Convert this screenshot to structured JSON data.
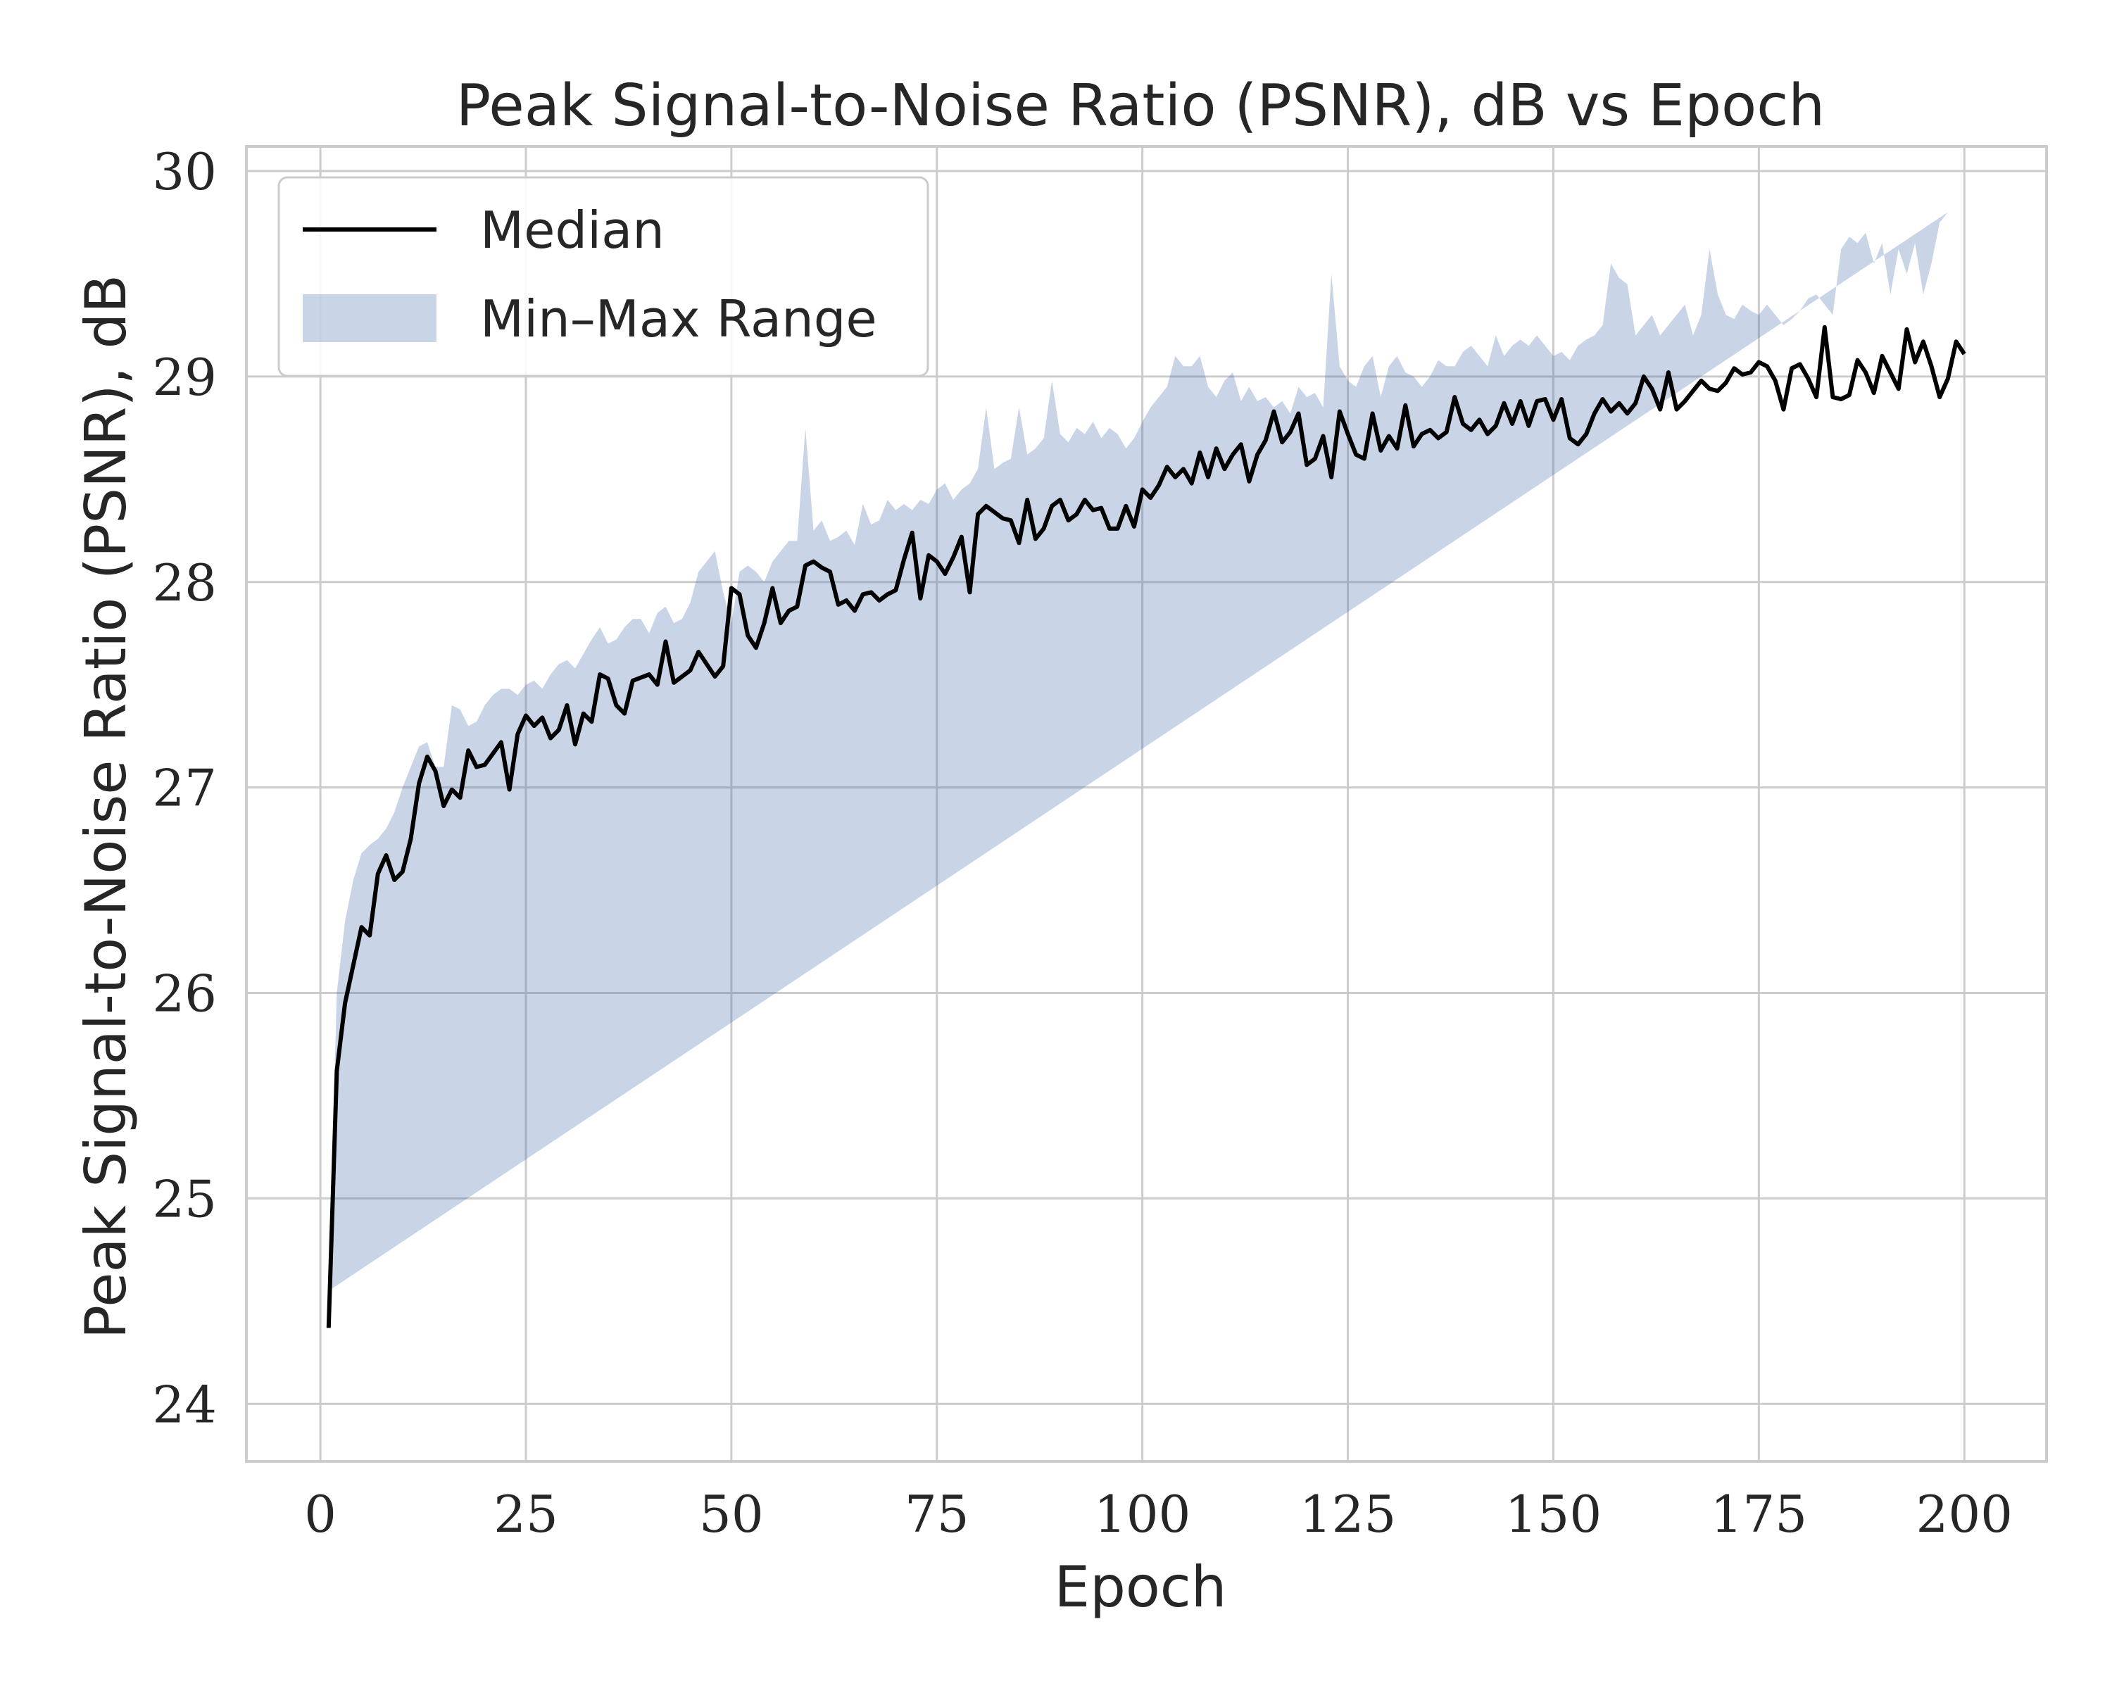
{
  "chart_data": {
    "type": "line",
    "title": "Peak Signal-to-Noise Ratio (PSNR), dB vs Epoch",
    "xlabel": "Epoch",
    "ylabel": "Peak Signal-to-Noise Ratio (PSNR), dB",
    "xlim": [
      -9,
      210
    ],
    "ylim": [
      23.72,
      30.12
    ],
    "xticks": [
      0,
      25,
      50,
      75,
      100,
      125,
      150,
      175,
      200
    ],
    "xtick_labels": [
      "0",
      "25",
      "50",
      "75",
      "100",
      "125",
      "150",
      "175",
      "200"
    ],
    "yticks": [
      24,
      25,
      26,
      27,
      28,
      29,
      30
    ],
    "ytick_labels": [
      "24",
      "25",
      "26",
      "27",
      "28",
      "29",
      "30"
    ],
    "grid": true,
    "legend": {
      "position": "top-left",
      "entries": [
        "Median",
        "Min–Max Range"
      ]
    },
    "colors": {
      "median": "#000000",
      "range_fill": "#4c72b0",
      "grid": "#cccccc",
      "spine": "#cccccc"
    },
    "series": [
      {
        "name": "Median",
        "kind": "line",
        "x": [
          1,
          2,
          3,
          5,
          6,
          7,
          8,
          9,
          10,
          11,
          12,
          13,
          14,
          15,
          16,
          17,
          18,
          19,
          20,
          22,
          23,
          24,
          25,
          26,
          27,
          28,
          29,
          30,
          31,
          32,
          33,
          34,
          35,
          36,
          37,
          38,
          40,
          41,
          42,
          43,
          45,
          46,
          48,
          49,
          50,
          51,
          52,
          53,
          54,
          55,
          56,
          57,
          58,
          59,
          60,
          61,
          62,
          63,
          64,
          65,
          66,
          67,
          68,
          69,
          70,
          71,
          72,
          73,
          74,
          75,
          76,
          77,
          78,
          79,
          80,
          81,
          82,
          83,
          84,
          85,
          86,
          87,
          88,
          89,
          90,
          91,
          92,
          93,
          94,
          95,
          96,
          97,
          98,
          99,
          100,
          101,
          102,
          103,
          104,
          105,
          106,
          107,
          108,
          109,
          110,
          111,
          112,
          113,
          114,
          115,
          116,
          117,
          118,
          119,
          120,
          121,
          122,
          123,
          124,
          125,
          126,
          127,
          128,
          129,
          130,
          131,
          132,
          133,
          134,
          135,
          136,
          137,
          138,
          139,
          140,
          141,
          142,
          143,
          144,
          145,
          146,
          147,
          148,
          149,
          150,
          151,
          152,
          153,
          154,
          155,
          156,
          157,
          158,
          159,
          160,
          161,
          162,
          163,
          164,
          165,
          166,
          167,
          168,
          169,
          170,
          171,
          172,
          173,
          174,
          175,
          176,
          177,
          178,
          179,
          180,
          181,
          182,
          183,
          184,
          185,
          186,
          187,
          188,
          189,
          190,
          191,
          192,
          193,
          194,
          195,
          196,
          197,
          198,
          199,
          200
        ],
        "y": [
          24.37,
          25.62,
          25.95,
          26.32,
          26.28,
          26.58,
          26.67,
          26.55,
          26.59,
          26.75,
          27.02,
          27.15,
          27.08,
          26.91,
          26.99,
          26.95,
          27.18,
          27.1,
          27.11,
          27.22,
          26.99,
          27.26,
          27.35,
          27.3,
          27.34,
          27.24,
          27.28,
          27.4,
          27.21,
          27.36,
          27.32,
          27.55,
          27.53,
          27.4,
          27.36,
          27.52,
          27.55,
          27.5,
          27.71,
          27.51,
          27.57,
          27.66,
          27.54,
          27.59,
          27.97,
          27.94,
          27.74,
          27.68,
          27.8,
          27.97,
          27.8,
          27.86,
          27.88,
          28.08,
          28.1,
          28.07,
          28.05,
          27.89,
          27.91,
          27.86,
          27.94,
          27.95,
          27.91,
          27.94,
          27.96,
          28.11,
          28.24,
          27.92,
          28.13,
          28.1,
          28.04,
          28.12,
          28.22,
          27.95,
          28.33,
          28.37,
          28.34,
          28.31,
          28.3,
          28.19,
          28.4,
          28.21,
          28.26,
          28.37,
          28.4,
          28.3,
          28.33,
          28.4,
          28.35,
          28.36,
          28.26,
          28.26,
          28.37,
          28.27,
          28.45,
          28.41,
          28.47,
          28.56,
          28.51,
          28.55,
          28.48,
          28.63,
          28.51,
          28.65,
          28.55,
          28.62,
          28.67,
          28.49,
          28.62,
          28.69,
          28.83,
          28.68,
          28.73,
          28.82,
          28.57,
          28.6,
          28.71,
          28.51,
          28.83,
          28.72,
          28.62,
          28.6,
          28.82,
          28.64,
          28.71,
          28.65,
          28.86,
          28.66,
          28.72,
          28.74,
          28.7,
          28.73,
          28.9,
          28.77,
          28.74,
          28.79,
          28.72,
          28.76,
          28.87,
          28.77,
          28.88,
          28.76,
          28.88,
          28.89,
          28.79,
          28.89,
          28.7,
          28.67,
          28.72,
          28.82,
          28.89,
          28.83,
          28.87,
          28.82,
          28.87,
          29.0,
          28.94,
          28.84,
          29.02,
          28.84,
          28.88,
          28.93,
          28.98,
          28.94,
          28.93,
          28.97,
          29.04,
          29.01,
          29.02,
          29.07,
          29.05,
          28.98,
          28.84,
          29.04,
          29.06,
          28.99,
          28.9,
          29.24,
          28.9,
          28.89,
          28.91,
          29.08,
          29.02,
          28.92,
          29.1,
          29.02,
          28.94,
          29.23,
          29.07,
          29.17,
          29.05,
          28.9,
          28.99,
          29.17,
          29.11
        ]
      },
      {
        "name": "Min–Max Range",
        "kind": "band",
        "x": [
          1,
          2,
          3,
          4,
          5,
          6,
          7,
          8,
          9,
          10,
          11,
          12,
          13,
          14,
          15,
          16,
          17,
          18,
          19,
          20,
          21,
          22,
          23,
          24,
          25,
          26,
          27,
          28,
          29,
          30,
          31,
          32,
          33,
          34,
          35,
          36,
          37,
          38,
          39,
          40,
          41,
          42,
          43,
          44,
          45,
          46,
          47,
          48,
          49,
          50,
          51,
          52,
          53,
          54,
          55,
          56,
          57,
          58,
          59,
          60,
          61,
          62,
          63,
          64,
          65,
          66,
          67,
          68,
          69,
          70,
          71,
          72,
          73,
          74,
          75,
          76,
          77,
          78,
          79,
          80,
          81,
          82,
          83,
          84,
          85,
          86,
          87,
          88,
          89,
          90,
          91,
          92,
          93,
          94,
          95,
          96,
          97,
          98,
          99,
          100,
          101,
          102,
          103,
          104,
          105,
          106,
          107,
          108,
          109,
          110,
          111,
          112,
          113,
          114,
          115,
          116,
          117,
          118,
          119,
          120,
          121,
          122,
          123,
          124,
          125,
          126,
          127,
          128,
          129,
          130,
          131,
          132,
          133,
          134,
          135,
          136,
          137,
          138,
          139,
          140,
          141,
          142,
          143,
          144,
          145,
          146,
          147,
          148,
          149,
          150,
          151,
          152,
          153,
          154,
          155,
          156,
          157,
          158,
          159,
          160,
          161,
          162,
          163,
          164,
          165,
          166,
          167,
          168,
          169,
          170,
          171,
          172,
          173,
          174,
          175,
          176,
          177,
          178,
          179,
          180,
          181,
          182,
          183,
          184,
          185,
          186,
          187,
          188,
          189,
          190,
          191,
          192,
          193,
          194,
          195,
          196,
          197,
          198,
          199,
          200
        ],
        "ymin": [
          24.05,
          25.45,
          25.8,
          25.78,
          25.92,
          25.9,
          26.35,
          26.08,
          26.25,
          26.2,
          26.5,
          26.75,
          26.78,
          26.55,
          26.62,
          26.55,
          26.9,
          26.85,
          26.88,
          26.9,
          26.92,
          26.72,
          26.85,
          26.78,
          26.75,
          26.95,
          26.85,
          26.8,
          26.95,
          27.12,
          27.12,
          27.12,
          27.08,
          27.2,
          27.22,
          27.15,
          27.1,
          27.2,
          27.25,
          27.3,
          27.35,
          27.4,
          27.28,
          27.22,
          27.4,
          27.45,
          27.18,
          27.2,
          27.35,
          27.3,
          27.6,
          27.45,
          27.28,
          27.55,
          27.45,
          27.5,
          27.55,
          27.65,
          27.88,
          27.68,
          27.7,
          27.72,
          27.75,
          27.8,
          27.75,
          27.85,
          27.75,
          27.8,
          27.9,
          27.95,
          27.9,
          27.85,
          27.88,
          27.95,
          28.0,
          27.9,
          27.88,
          27.92,
          28.0,
          27.85,
          28.1,
          28.15,
          28.2,
          28.18,
          28.1,
          28.05,
          28.2,
          28.25,
          28.02,
          28.0,
          28.15,
          28.2,
          28.25,
          28.2,
          28.15,
          28.2,
          28.25,
          28.2,
          28.3,
          28.2,
          28.25,
          28.3,
          28.35,
          28.4,
          28.45,
          28.35,
          28.4,
          28.35,
          28.5,
          28.4,
          28.45,
          28.5,
          28.4,
          28.45,
          28.5,
          28.55,
          28.5,
          28.45,
          28.55,
          28.4,
          28.45,
          28.5,
          28.35,
          28.4,
          28.45,
          28.5,
          28.55,
          28.6,
          28.45,
          28.48,
          28.5,
          28.55,
          28.48,
          28.5,
          28.6,
          28.45,
          28.38,
          28.52,
          28.48,
          28.62,
          28.55,
          28.58,
          28.52,
          28.58,
          28.5,
          28.55,
          28.6,
          28.58,
          28.62,
          28.65,
          28.6,
          28.55,
          27.62,
          28.55,
          28.65,
          28.7,
          28.65,
          28.62,
          28.7,
          28.75,
          28.65,
          28.62,
          28.6,
          28.75,
          28.72,
          28.65,
          28.72,
          28.75,
          28.78,
          28.8,
          28.82,
          28.75,
          28.8,
          28.78,
          28.82,
          28.78,
          28.8,
          28.8,
          28.85,
          28.9,
          28.78,
          28.75,
          28.8,
          28.7,
          28.75,
          28.8,
          28.82,
          28.88,
          28.9,
          28.85,
          28.8,
          28.82,
          28.85,
          28.82,
          28.9,
          28.85,
          28.8,
          28.82,
          28.85,
          28.82,
          28.78
        ],
        "ymax": [
          24.55,
          26.0,
          26.35,
          26.55,
          26.68,
          26.72,
          26.75,
          26.8,
          26.88,
          27.0,
          27.1,
          27.2,
          27.22,
          27.1,
          27.1,
          27.4,
          27.38,
          27.3,
          27.32,
          27.4,
          27.45,
          27.48,
          27.48,
          27.45,
          27.5,
          27.52,
          27.48,
          27.55,
          27.6,
          27.62,
          27.58,
          27.65,
          27.72,
          27.78,
          27.7,
          27.72,
          27.78,
          27.82,
          27.82,
          27.75,
          27.85,
          27.88,
          27.8,
          27.82,
          27.9,
          28.05,
          28.1,
          28.15,
          27.95,
          27.8,
          28.05,
          28.08,
          28.05,
          28.0,
          28.1,
          28.15,
          28.2,
          28.2,
          28.75,
          28.25,
          28.3,
          28.2,
          28.22,
          28.25,
          28.18,
          28.38,
          28.28,
          28.3,
          28.4,
          28.35,
          28.38,
          28.35,
          28.4,
          28.38,
          28.45,
          28.48,
          28.4,
          28.45,
          28.48,
          28.55,
          28.85,
          28.55,
          28.58,
          28.6,
          28.85,
          28.62,
          28.65,
          28.7,
          28.98,
          28.72,
          28.68,
          28.75,
          28.72,
          28.78,
          28.7,
          28.75,
          28.72,
          28.65,
          28.7,
          28.78,
          28.85,
          28.9,
          28.95,
          29.1,
          29.05,
          29.05,
          29.1,
          28.95,
          28.9,
          28.98,
          29.02,
          28.88,
          28.95,
          28.88,
          28.9,
          28.85,
          28.88,
          28.82,
          28.95,
          28.9,
          28.92,
          28.85,
          29.5,
          29.05,
          28.98,
          28.95,
          29.05,
          29.1,
          28.9,
          29.05,
          29.1,
          29.02,
          29.0,
          28.95,
          29.0,
          29.08,
          29.05,
          29.05,
          29.12,
          29.15,
          29.1,
          29.05,
          29.2,
          29.1,
          29.15,
          29.18,
          29.15,
          29.2,
          29.15,
          29.1,
          29.12,
          29.08,
          29.15,
          29.18,
          29.2,
          29.25,
          29.55,
          29.48,
          29.45,
          29.2,
          29.25,
          29.3,
          29.2,
          29.25,
          29.3,
          29.35,
          29.2,
          29.3,
          29.62,
          29.4,
          29.3,
          29.28,
          29.35,
          29.32,
          29.3,
          29.35,
          29.3,
          29.25,
          29.28,
          29.32,
          29.38,
          29.4,
          29.35,
          29.3,
          29.62,
          29.68,
          29.65,
          29.7,
          29.55,
          29.65,
          29.4,
          29.62,
          29.5,
          29.65,
          29.4,
          29.55,
          29.75,
          29.8
        ]
      }
    ]
  }
}
